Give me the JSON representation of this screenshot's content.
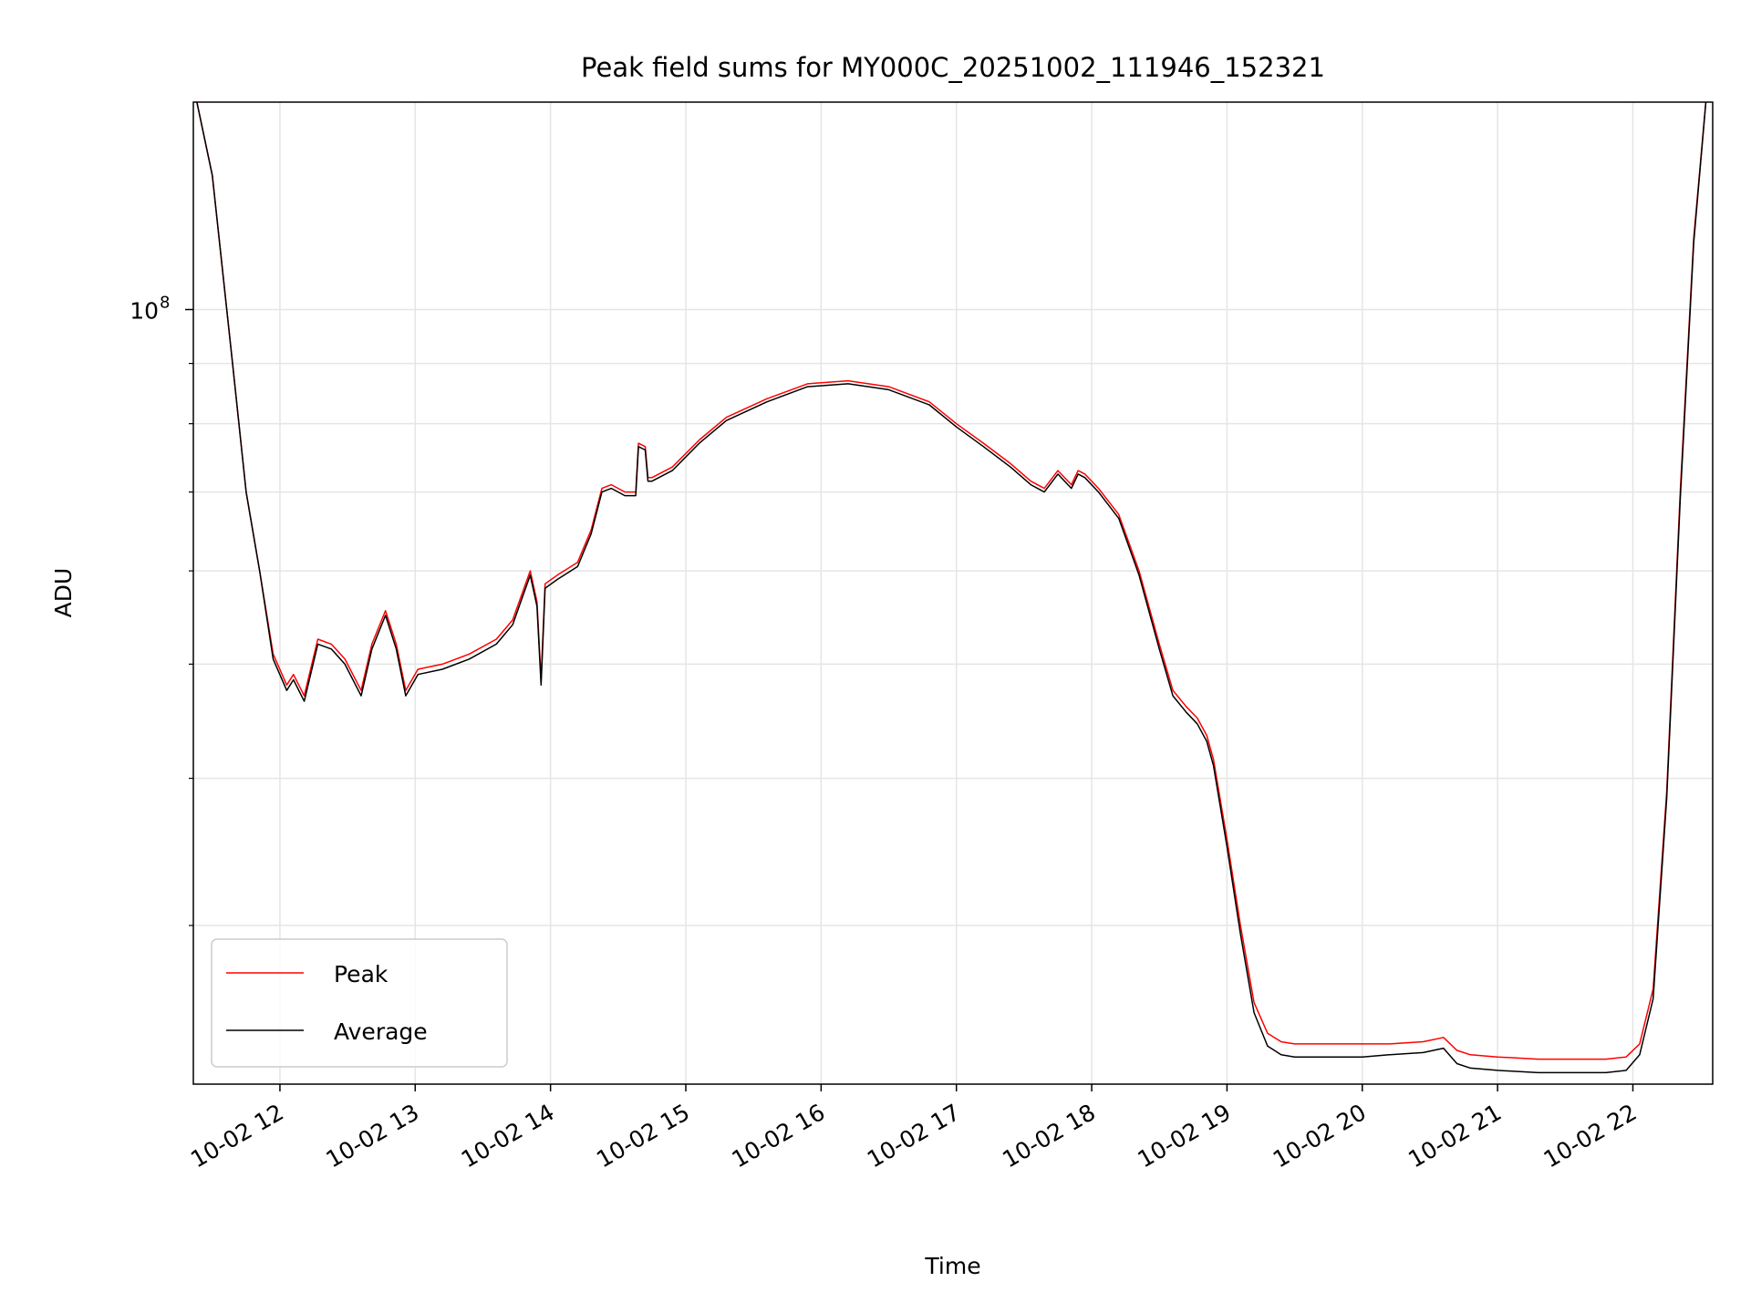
{
  "chart_data": {
    "type": "line",
    "title": "Peak field sums for MY000C_20251002_111946_152321",
    "xlabel": "Time",
    "ylabel": "ADU",
    "yscale": "log",
    "ylim": [
      22000000,
      150000000
    ],
    "xlim": [
      11.36,
      22.59
    ],
    "x_unit": "hour of 2025-10-02",
    "x_ticks": [
      {
        "value": 12,
        "label": "10-02 12"
      },
      {
        "value": 13,
        "label": "10-02 13"
      },
      {
        "value": 14,
        "label": "10-02 14"
      },
      {
        "value": 15,
        "label": "10-02 15"
      },
      {
        "value": 16,
        "label": "10-02 16"
      },
      {
        "value": 17,
        "label": "10-02 17"
      },
      {
        "value": 18,
        "label": "10-02 18"
      },
      {
        "value": 19,
        "label": "10-02 19"
      },
      {
        "value": 20,
        "label": "10-02 20"
      },
      {
        "value": 21,
        "label": "10-02 21"
      },
      {
        "value": 22,
        "label": "10-02 22"
      }
    ],
    "y_major_tick": {
      "value": 100000000,
      "label_base": "10",
      "label_exp": "8"
    },
    "y_minor_ticks": [
      30000000,
      40000000,
      50000000,
      60000000,
      70000000,
      80000000,
      90000000,
      200000000
    ],
    "grid": true,
    "legend_position": "lower-left",
    "series": [
      {
        "name": "Peak",
        "color": "#ff0000",
        "x": [
          11.36,
          11.5,
          11.65,
          11.75,
          11.85,
          11.95,
          12.05,
          12.1,
          12.18,
          12.28,
          12.38,
          12.48,
          12.6,
          12.68,
          12.78,
          12.86,
          12.93,
          13.02,
          13.2,
          13.4,
          13.6,
          13.72,
          13.85,
          13.9,
          13.93,
          13.96,
          14.05,
          14.2,
          14.3,
          14.38,
          14.45,
          14.55,
          14.63,
          14.65,
          14.7,
          14.72,
          14.75,
          14.9,
          15.1,
          15.3,
          15.6,
          15.9,
          16.2,
          16.5,
          16.8,
          17.0,
          17.2,
          17.4,
          17.55,
          17.65,
          17.75,
          17.85,
          17.9,
          17.95,
          18.05,
          18.2,
          18.35,
          18.5,
          18.6,
          18.7,
          18.78,
          18.85,
          18.9,
          19.0,
          19.1,
          19.2,
          19.3,
          19.4,
          19.5,
          19.6,
          19.8,
          20.0,
          20.2,
          20.45,
          20.6,
          20.7,
          20.8,
          21.0,
          21.3,
          21.6,
          21.8,
          21.95,
          22.05,
          22.15,
          22.25,
          22.35,
          22.45,
          22.55
        ],
        "y": [
          155000000,
          130000000,
          90000000,
          70000000,
          60000000,
          51000000,
          48000000,
          49000000,
          47000000,
          52500000,
          52000000,
          50500000,
          47500000,
          52000000,
          55500000,
          52000000,
          47500000,
          49500000,
          50000000,
          51000000,
          52500000,
          54500000,
          60000000,
          56500000,
          48500000,
          58500000,
          59500000,
          61000000,
          65000000,
          70500000,
          71000000,
          70000000,
          70000000,
          77000000,
          76500000,
          72000000,
          72000000,
          73500000,
          77500000,
          81000000,
          84000000,
          86500000,
          87000000,
          86000000,
          83500000,
          80000000,
          77000000,
          74000000,
          71500000,
          70500000,
          73000000,
          71000000,
          73000000,
          72500000,
          70500000,
          67000000,
          60000000,
          52000000,
          47500000,
          46000000,
          45000000,
          43500000,
          41500000,
          35500000,
          30000000,
          25800000,
          24300000,
          23900000,
          23800000,
          23800000,
          23800000,
          23800000,
          23800000,
          23900000,
          24100000,
          23500000,
          23300000,
          23200000,
          23100000,
          23100000,
          23100000,
          23200000,
          23800000,
          26500000,
          39000000,
          70000000,
          115000000,
          155000000
        ]
      },
      {
        "name": "Average",
        "color": "#000000",
        "x": [
          11.36,
          11.5,
          11.65,
          11.75,
          11.85,
          11.95,
          12.05,
          12.1,
          12.18,
          12.28,
          12.38,
          12.48,
          12.6,
          12.68,
          12.78,
          12.86,
          12.93,
          13.02,
          13.2,
          13.4,
          13.6,
          13.72,
          13.85,
          13.9,
          13.93,
          13.96,
          14.05,
          14.2,
          14.3,
          14.38,
          14.45,
          14.55,
          14.63,
          14.65,
          14.7,
          14.72,
          14.75,
          14.9,
          15.1,
          15.3,
          15.6,
          15.9,
          16.2,
          16.5,
          16.8,
          17.0,
          17.2,
          17.4,
          17.55,
          17.65,
          17.75,
          17.85,
          17.9,
          17.95,
          18.05,
          18.2,
          18.35,
          18.5,
          18.6,
          18.7,
          18.78,
          18.85,
          18.9,
          19.0,
          19.1,
          19.2,
          19.3,
          19.4,
          19.5,
          19.6,
          19.8,
          20.0,
          20.2,
          20.45,
          20.6,
          20.7,
          20.8,
          21.0,
          21.3,
          21.6,
          21.8,
          21.95,
          22.05,
          22.15,
          22.25,
          22.35,
          22.45,
          22.55
        ],
        "y": [
          155000000,
          130000000,
          90000000,
          70000000,
          60000000,
          50500000,
          47500000,
          48500000,
          46500000,
          52000000,
          51500000,
          50000000,
          47000000,
          51500000,
          55000000,
          51500000,
          47000000,
          49000000,
          49500000,
          50500000,
          52000000,
          54000000,
          59500000,
          56000000,
          48000000,
          58000000,
          59000000,
          60500000,
          64500000,
          70000000,
          70500000,
          69500000,
          69500000,
          76500000,
          76000000,
          71500000,
          71500000,
          73000000,
          77000000,
          80500000,
          83500000,
          86000000,
          86500000,
          85500000,
          83000000,
          79500000,
          76500000,
          73500000,
          71000000,
          70000000,
          72500000,
          70500000,
          72500000,
          72000000,
          70000000,
          66500000,
          59500000,
          51500000,
          47000000,
          45500000,
          44500000,
          43000000,
          41000000,
          35000000,
          29500000,
          25300000,
          23700000,
          23300000,
          23200000,
          23200000,
          23200000,
          23200000,
          23300000,
          23400000,
          23600000,
          22900000,
          22700000,
          22600000,
          22500000,
          22500000,
          22500000,
          22600000,
          23300000,
          26000000,
          38500000,
          69000000,
          114000000,
          155000000
        ]
      }
    ]
  }
}
